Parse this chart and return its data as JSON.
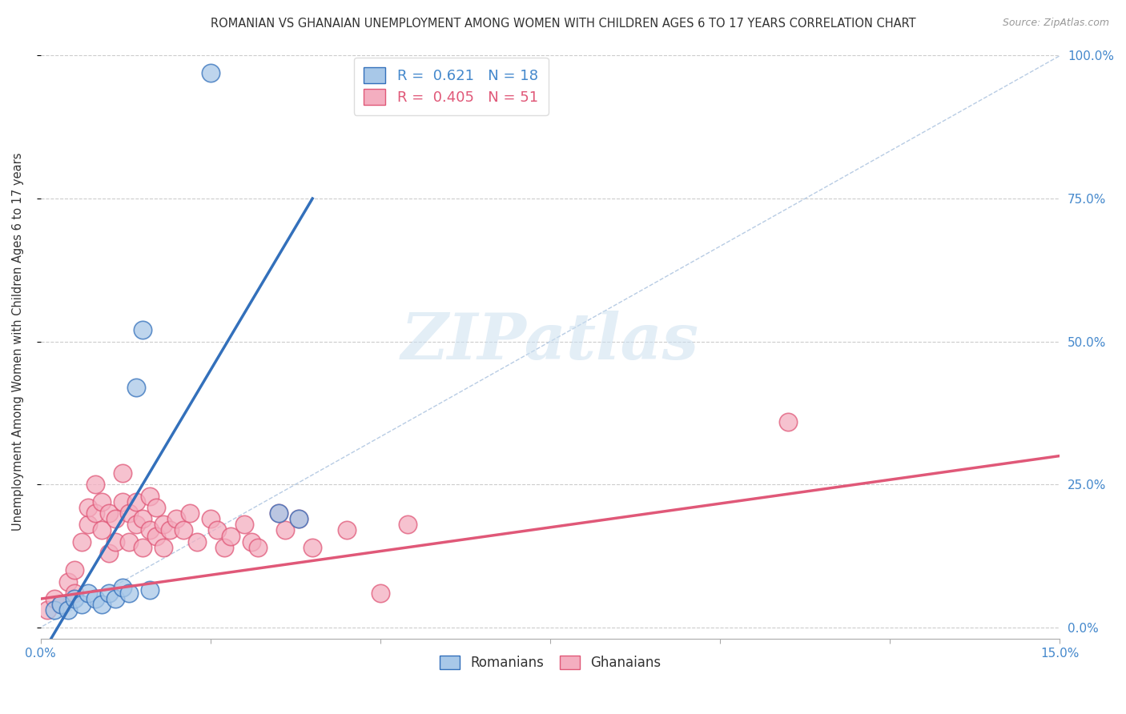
{
  "title": "ROMANIAN VS GHANAIAN UNEMPLOYMENT AMONG WOMEN WITH CHILDREN AGES 6 TO 17 YEARS CORRELATION CHART",
  "source": "Source: ZipAtlas.com",
  "ylabel": "Unemployment Among Women with Children Ages 6 to 17 years",
  "watermark": "ZIPatlas",
  "romanian_color": "#a8c8e8",
  "ghanaian_color": "#f4aec0",
  "romanian_line_color": "#3370bb",
  "ghanaian_line_color": "#e05878",
  "ref_line_color": "#b8cce4",
  "xlim": [
    0.0,
    0.15
  ],
  "ylim": [
    -0.02,
    1.02
  ],
  "legend_r_rom": "0.621",
  "legend_n_rom": "18",
  "legend_r_gha": "0.405",
  "legend_n_gha": "51",
  "romanians_x": [
    0.002,
    0.003,
    0.004,
    0.005,
    0.006,
    0.007,
    0.008,
    0.009,
    0.01,
    0.011,
    0.012,
    0.013,
    0.014,
    0.015,
    0.016,
    0.035,
    0.038,
    0.025
  ],
  "romanians_y": [
    0.03,
    0.04,
    0.03,
    0.05,
    0.04,
    0.06,
    0.05,
    0.04,
    0.06,
    0.05,
    0.07,
    0.06,
    0.42,
    0.52,
    0.065,
    0.2,
    0.19,
    0.97
  ],
  "ghanaians_x": [
    0.001,
    0.002,
    0.003,
    0.004,
    0.005,
    0.005,
    0.006,
    0.007,
    0.007,
    0.008,
    0.008,
    0.009,
    0.009,
    0.01,
    0.01,
    0.011,
    0.011,
    0.012,
    0.012,
    0.013,
    0.013,
    0.014,
    0.014,
    0.015,
    0.015,
    0.016,
    0.016,
    0.017,
    0.017,
    0.018,
    0.018,
    0.019,
    0.02,
    0.021,
    0.022,
    0.023,
    0.025,
    0.026,
    0.027,
    0.028,
    0.03,
    0.031,
    0.032,
    0.035,
    0.036,
    0.038,
    0.04,
    0.045,
    0.05,
    0.054,
    0.11
  ],
  "ghanaians_y": [
    0.03,
    0.05,
    0.04,
    0.08,
    0.06,
    0.1,
    0.15,
    0.18,
    0.21,
    0.2,
    0.25,
    0.22,
    0.17,
    0.2,
    0.13,
    0.19,
    0.15,
    0.22,
    0.27,
    0.2,
    0.15,
    0.18,
    0.22,
    0.14,
    0.19,
    0.17,
    0.23,
    0.21,
    0.16,
    0.18,
    0.14,
    0.17,
    0.19,
    0.17,
    0.2,
    0.15,
    0.19,
    0.17,
    0.14,
    0.16,
    0.18,
    0.15,
    0.14,
    0.2,
    0.17,
    0.19,
    0.14,
    0.17,
    0.06,
    0.18,
    0.36
  ]
}
